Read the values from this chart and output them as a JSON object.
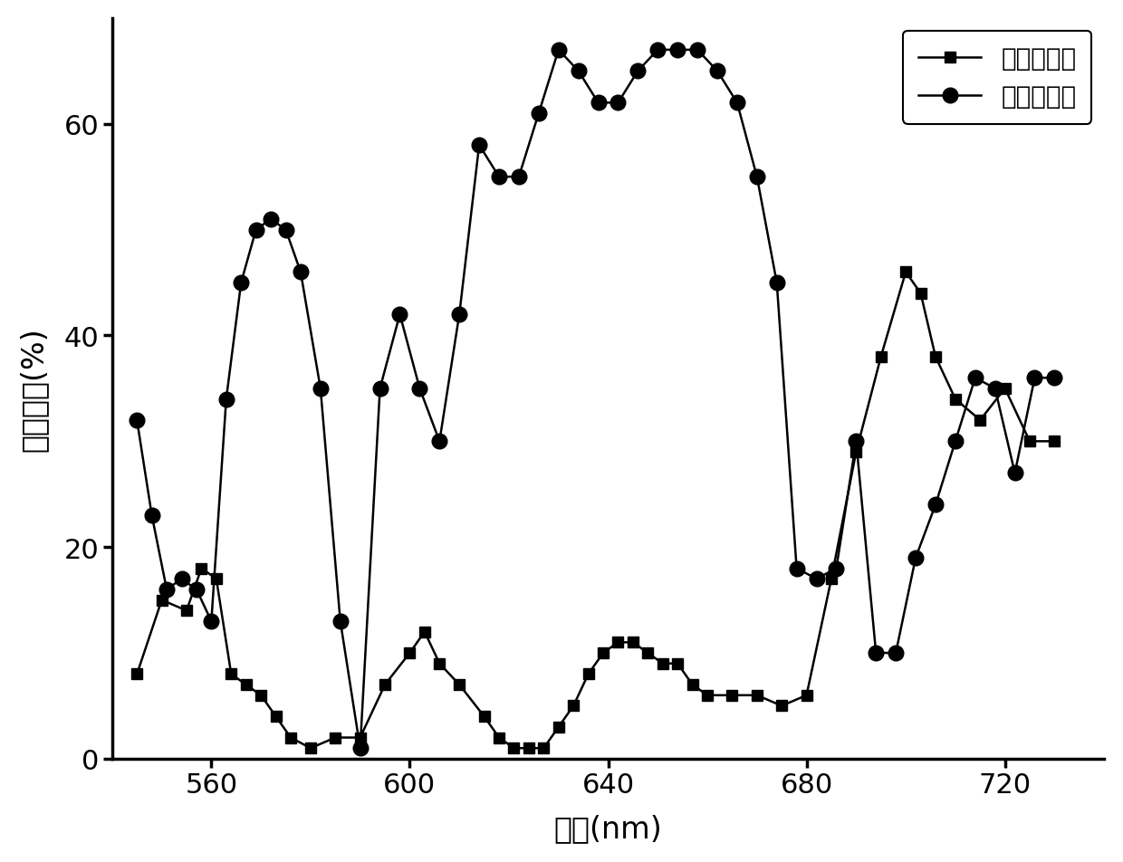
{
  "title": "",
  "xlabel": "波长(nm)",
  "ylabel": "反射效率(%)",
  "xlim": [
    540,
    740
  ],
  "ylim": [
    0,
    70
  ],
  "xticks": [
    560,
    600,
    640,
    680,
    720
  ],
  "yticks": [
    0,
    20,
    40,
    60
  ],
  "line1_label": "同向偏振光",
  "line2_label": "反向偏振光",
  "line1_color": "#000000",
  "line2_color": "#000000",
  "line1_marker": "s",
  "line2_marker": "o",
  "line1_x": [
    545,
    550,
    555,
    558,
    561,
    564,
    567,
    570,
    573,
    576,
    580,
    585,
    590,
    595,
    600,
    603,
    606,
    610,
    615,
    618,
    621,
    624,
    627,
    630,
    633,
    636,
    639,
    642,
    645,
    648,
    651,
    654,
    657,
    660,
    665,
    670,
    675,
    680,
    685,
    690,
    695,
    700,
    703,
    706,
    710,
    715,
    720,
    725,
    730
  ],
  "line1_y": [
    8,
    15,
    14,
    18,
    17,
    8,
    7,
    6,
    4,
    2,
    1,
    2,
    2,
    7,
    10,
    12,
    9,
    7,
    4,
    2,
    1,
    1,
    1,
    3,
    5,
    8,
    10,
    11,
    11,
    10,
    9,
    9,
    7,
    6,
    6,
    6,
    5,
    6,
    17,
    29,
    38,
    46,
    44,
    38,
    34,
    32,
    35,
    30,
    30
  ],
  "line2_x": [
    545,
    548,
    551,
    554,
    557,
    560,
    563,
    566,
    569,
    572,
    575,
    578,
    582,
    586,
    590,
    594,
    598,
    602,
    606,
    610,
    614,
    618,
    622,
    626,
    630,
    634,
    638,
    642,
    646,
    650,
    654,
    658,
    662,
    666,
    670,
    674,
    678,
    682,
    686,
    690,
    694,
    698,
    702,
    706,
    710,
    714,
    718,
    722,
    726,
    730
  ],
  "line2_y": [
    32,
    23,
    16,
    17,
    16,
    13,
    34,
    45,
    50,
    51,
    50,
    46,
    35,
    13,
    1,
    35,
    42,
    35,
    30,
    42,
    58,
    55,
    55,
    61,
    67,
    65,
    62,
    62,
    65,
    67,
    67,
    67,
    65,
    62,
    55,
    45,
    18,
    17,
    18,
    30,
    10,
    10,
    19,
    24,
    30,
    36,
    35,
    27,
    36,
    36
  ],
  "background_color": "#ffffff",
  "marker1_size": 8,
  "marker2_size": 12,
  "linewidth": 1.8,
  "tick_fontsize": 22,
  "label_fontsize": 24,
  "legend_fontsize": 20
}
